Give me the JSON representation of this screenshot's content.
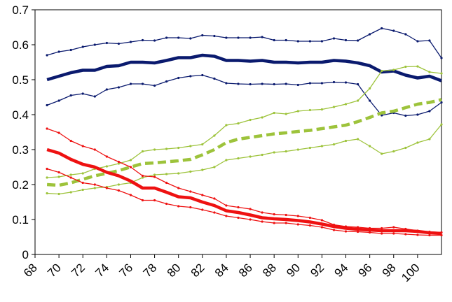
{
  "chart_data": {
    "type": "line",
    "title": "",
    "xlabel": "",
    "ylabel": "",
    "ylim": [
      0,
      0.7
    ],
    "xlim": [
      68,
      102
    ],
    "grid": false,
    "legend": "none",
    "x_ticks": [
      68,
      70,
      72,
      74,
      76,
      78,
      80,
      82,
      84,
      86,
      88,
      90,
      92,
      94,
      96,
      98,
      100
    ],
    "x_tick_labels": [
      "68",
      "70",
      "72",
      "74",
      "76",
      "78",
      "80",
      "82",
      "84",
      "86",
      "88",
      "90",
      "92",
      "94",
      "96",
      "98",
      "100"
    ],
    "y_ticks": [
      0,
      0.1,
      0.2,
      0.3,
      0.4,
      0.5,
      0.6,
      0.7
    ],
    "y_tick_labels": [
      "0",
      "0.1",
      "0.2",
      "0.3",
      "0.4",
      "0.5",
      "0.6",
      "0.7"
    ],
    "x": [
      69,
      70,
      71,
      72,
      73,
      74,
      75,
      76,
      77,
      78,
      79,
      80,
      81,
      82,
      83,
      84,
      85,
      86,
      87,
      88,
      89,
      90,
      91,
      92,
      93,
      94,
      95,
      96,
      97,
      98,
      99,
      100,
      101,
      102
    ],
    "series": [
      {
        "color": "#0A1A6E",
        "style": "thick",
        "values": [
          0.5,
          0.51,
          0.52,
          0.527,
          0.527,
          0.538,
          0.54,
          0.55,
          0.55,
          0.548,
          0.555,
          0.563,
          0.563,
          0.57,
          0.567,
          0.555,
          0.555,
          0.553,
          0.555,
          0.55,
          0.55,
          0.548,
          0.55,
          0.55,
          0.555,
          0.553,
          0.548,
          0.54,
          0.522,
          0.525,
          0.513,
          0.505,
          0.51,
          0.497
        ]
      },
      {
        "color": "#0A1A6E",
        "style": "thin",
        "values": [
          0.57,
          0.58,
          0.585,
          0.594,
          0.6,
          0.605,
          0.603,
          0.608,
          0.613,
          0.612,
          0.62,
          0.62,
          0.618,
          0.627,
          0.625,
          0.62,
          0.62,
          0.62,
          0.622,
          0.613,
          0.613,
          0.61,
          0.61,
          0.61,
          0.618,
          0.613,
          0.612,
          0.63,
          0.647,
          0.64,
          0.63,
          0.61,
          0.612,
          0.562
        ]
      },
      {
        "color": "#0A1A6E",
        "style": "thin",
        "values": [
          0.427,
          0.44,
          0.455,
          0.46,
          0.452,
          0.472,
          0.478,
          0.488,
          0.488,
          0.483,
          0.495,
          0.505,
          0.51,
          0.513,
          0.503,
          0.49,
          0.488,
          0.487,
          0.488,
          0.487,
          0.488,
          0.485,
          0.49,
          0.49,
          0.493,
          0.492,
          0.487,
          0.44,
          0.398,
          0.405,
          0.397,
          0.4,
          0.41,
          0.435
        ]
      },
      {
        "color": "#9DC33B",
        "style": "thick-dashed",
        "values": [
          0.2,
          0.198,
          0.205,
          0.215,
          0.225,
          0.232,
          0.24,
          0.25,
          0.26,
          0.262,
          0.265,
          0.268,
          0.272,
          0.285,
          0.3,
          0.32,
          0.33,
          0.335,
          0.34,
          0.345,
          0.348,
          0.352,
          0.355,
          0.36,
          0.365,
          0.37,
          0.38,
          0.392,
          0.405,
          0.41,
          0.42,
          0.43,
          0.435,
          0.443
        ]
      },
      {
        "color": "#9DC33B",
        "style": "thin",
        "values": [
          0.22,
          0.222,
          0.228,
          0.232,
          0.245,
          0.252,
          0.26,
          0.27,
          0.295,
          0.3,
          0.302,
          0.305,
          0.31,
          0.315,
          0.34,
          0.37,
          0.375,
          0.385,
          0.392,
          0.405,
          0.402,
          0.41,
          0.413,
          0.415,
          0.422,
          0.43,
          0.44,
          0.475,
          0.525,
          0.528,
          0.537,
          0.538,
          0.522,
          0.518
        ]
      },
      {
        "color": "#9DC33B",
        "style": "thin",
        "values": [
          0.175,
          0.173,
          0.178,
          0.185,
          0.19,
          0.193,
          0.2,
          0.205,
          0.22,
          0.228,
          0.23,
          0.232,
          0.237,
          0.242,
          0.25,
          0.27,
          0.275,
          0.28,
          0.285,
          0.292,
          0.295,
          0.3,
          0.305,
          0.31,
          0.315,
          0.325,
          0.33,
          0.31,
          0.288,
          0.295,
          0.305,
          0.32,
          0.33,
          0.372
        ]
      },
      {
        "color": "#EE1111",
        "style": "thick",
        "values": [
          0.3,
          0.29,
          0.272,
          0.258,
          0.25,
          0.235,
          0.225,
          0.21,
          0.19,
          0.19,
          0.178,
          0.165,
          0.162,
          0.15,
          0.14,
          0.125,
          0.12,
          0.113,
          0.105,
          0.102,
          0.1,
          0.097,
          0.093,
          0.087,
          0.08,
          0.075,
          0.072,
          0.07,
          0.068,
          0.068,
          0.068,
          0.066,
          0.062,
          0.06
        ]
      },
      {
        "color": "#EE1111",
        "style": "thin",
        "values": [
          0.36,
          0.348,
          0.325,
          0.31,
          0.3,
          0.28,
          0.265,
          0.25,
          0.225,
          0.222,
          0.205,
          0.19,
          0.18,
          0.17,
          0.16,
          0.14,
          0.135,
          0.13,
          0.12,
          0.115,
          0.113,
          0.11,
          0.105,
          0.098,
          0.085,
          0.08,
          0.078,
          0.075,
          0.075,
          0.078,
          0.073,
          0.068,
          0.065,
          0.063
        ]
      },
      {
        "color": "#EE1111",
        "style": "thin",
        "values": [
          0.245,
          0.235,
          0.22,
          0.205,
          0.2,
          0.19,
          0.183,
          0.17,
          0.155,
          0.155,
          0.145,
          0.138,
          0.135,
          0.128,
          0.12,
          0.11,
          0.105,
          0.1,
          0.094,
          0.09,
          0.09,
          0.086,
          0.083,
          0.078,
          0.07,
          0.066,
          0.065,
          0.063,
          0.06,
          0.06,
          0.058,
          0.056,
          0.055,
          0.055
        ]
      }
    ]
  }
}
